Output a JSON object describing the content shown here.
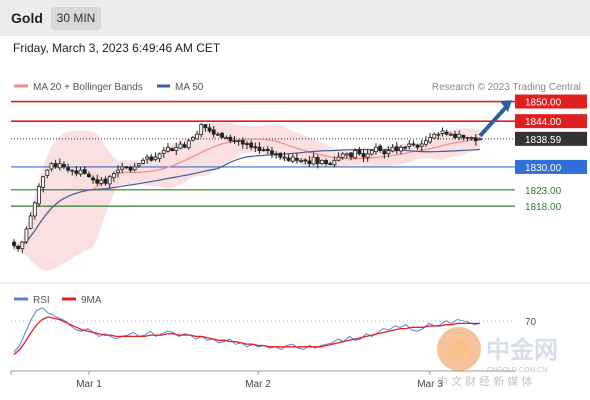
{
  "header": {
    "instrument": "Gold",
    "timeframe_button": "30 MIN"
  },
  "timestamp": "Friday, March 3, 2023 6:49:46 AM CET",
  "chart_data": [
    {
      "type": "candlestick",
      "legend": [
        {
          "label": "MA 20 + Bollinger Bands",
          "color": "#f08b8b"
        },
        {
          "label": "MA 50",
          "color": "#3f5e9e"
        }
      ],
      "legend_placement": "top-left",
      "credit": "Research © 2023 Trading Central",
      "levels": [
        {
          "value": 1850.0,
          "label": "1850.00",
          "kind": "resistance",
          "color": "#e02020"
        },
        {
          "value": 1844.0,
          "label": "1844.00",
          "kind": "resistance",
          "color": "#e02020"
        },
        {
          "value": 1838.59,
          "label": "1838.59",
          "kind": "last-price",
          "color": "#333333"
        },
        {
          "value": 1830.0,
          "label": "1830.00",
          "kind": "pivot",
          "color": "#2f6fd6"
        },
        {
          "value": 1823.0,
          "label": "1823.00",
          "kind": "support",
          "color": "#2e7d2e"
        },
        {
          "value": 1818.0,
          "label": "1818.00",
          "kind": "support",
          "color": "#2e7d2e"
        }
      ],
      "ylim": [
        1800,
        1852
      ],
      "forecast_arrow": {
        "from": 1839.5,
        "to": 1849.5,
        "color": "#2d5f9e"
      },
      "ohlc_close": [
        1806,
        1805,
        1807,
        1811,
        1815,
        1819,
        1824,
        1827,
        1829,
        1831,
        1830,
        1831,
        1830,
        1829,
        1829,
        1828,
        1829,
        1828,
        1827,
        1826,
        1825,
        1826,
        1825,
        1827,
        1828,
        1829,
        1830,
        1830,
        1829,
        1830,
        1831,
        1832,
        1833,
        1832,
        1833,
        1834,
        1835,
        1836,
        1835,
        1836,
        1837,
        1836,
        1838,
        1839,
        1840,
        1843,
        1842,
        1841,
        1840,
        1840,
        1839,
        1839,
        1838,
        1838,
        1838,
        1837,
        1837,
        1836,
        1836,
        1835,
        1835,
        1835,
        1834,
        1834,
        1833,
        1833,
        1832,
        1833,
        1832,
        1832,
        1832,
        1831,
        1833,
        1831,
        1832,
        1831,
        1831,
        1832,
        1833,
        1834,
        1834,
        1833,
        1835,
        1834,
        1833,
        1834,
        1835,
        1836,
        1835,
        1834,
        1835,
        1836,
        1835,
        1836,
        1836,
        1837,
        1837,
        1836,
        1837,
        1838,
        1839,
        1840,
        1840,
        1841,
        1840,
        1840,
        1839,
        1840,
        1839,
        1839,
        1839,
        1838,
        1838.59
      ]
    },
    {
      "type": "line",
      "legend": [
        {
          "label": "RSI",
          "color": "#5b7fd6"
        },
        {
          "label": "9MA",
          "color": "#e02020"
        }
      ],
      "level_label": "70",
      "ylim": [
        30,
        80
      ],
      "series": [
        {
          "name": "RSI",
          "values": [
            40,
            45,
            55,
            65,
            72,
            74,
            70,
            68,
            66,
            64,
            60,
            57,
            56,
            58,
            55,
            52,
            54,
            52,
            50,
            52,
            53,
            55,
            52,
            53,
            56,
            52,
            54,
            56,
            55,
            52,
            54,
            53,
            50,
            52,
            49,
            50,
            47,
            48,
            50,
            46,
            47,
            44,
            46,
            44,
            45,
            43,
            44,
            42,
            45,
            46,
            43,
            42,
            45,
            43,
            45,
            46,
            47,
            50,
            48,
            52,
            49,
            50,
            54,
            52,
            55,
            58,
            57,
            60,
            59,
            61,
            57,
            56,
            58,
            62,
            60,
            61,
            64,
            62,
            65,
            64,
            63,
            61,
            62
          ]
        },
        {
          "name": "9MA",
          "values": [
            38,
            42,
            48,
            55,
            61,
            65,
            67,
            66,
            65,
            63,
            61,
            59,
            57,
            56,
            55,
            54,
            53,
            53,
            52,
            52,
            52,
            52,
            52,
            52,
            53,
            53,
            53,
            54,
            54,
            53,
            53,
            53,
            52,
            52,
            51,
            50,
            49,
            49,
            48,
            48,
            47,
            46,
            46,
            45,
            45,
            44,
            44,
            44,
            44,
            44,
            44,
            44,
            44,
            44,
            44,
            45,
            46,
            47,
            48,
            49,
            50,
            51,
            52,
            53,
            54,
            55,
            56,
            57,
            58,
            58,
            59,
            59,
            59,
            60,
            60,
            60,
            61,
            61,
            62,
            62,
            62,
            62,
            62
          ]
        }
      ]
    }
  ],
  "x_axis": {
    "ticks": [
      "Mar 1",
      "Mar 2",
      "Mar 3"
    ]
  },
  "watermark": {
    "brand": "中金网",
    "url": "CNGOLD.COM.CN",
    "tagline": "中 文 财 经 新 媒 体"
  }
}
